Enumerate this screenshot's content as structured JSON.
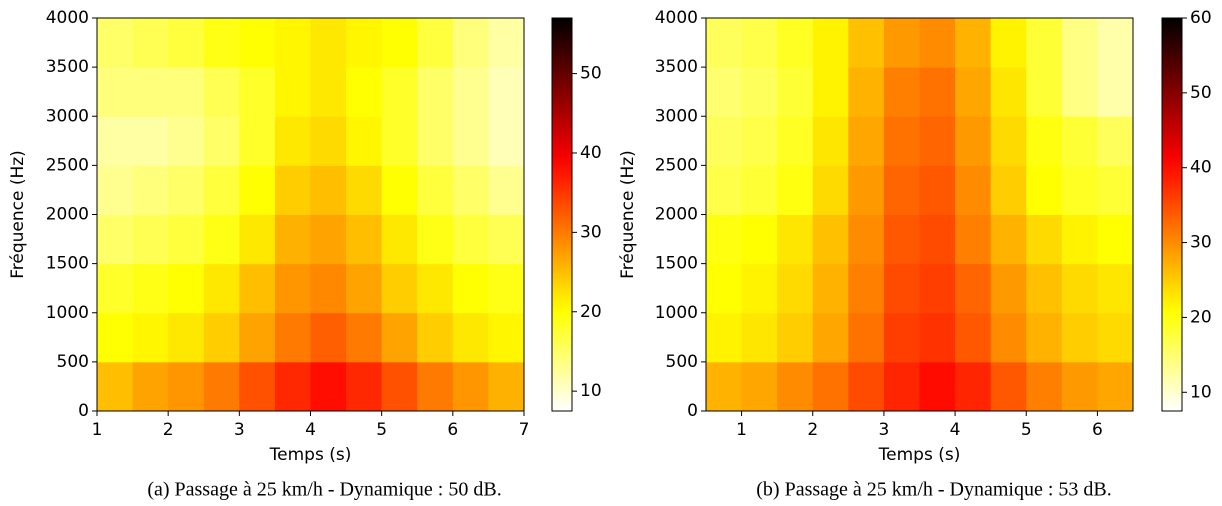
{
  "chart_data": [
    {
      "type": "heatmap",
      "caption": "(a) Passage à 25 km/h - Dynamique : 50 dB.",
      "x_label": "Temps (s)",
      "y_label": "Fréquence (Hz)",
      "x": [
        1.25,
        1.75,
        2.25,
        2.75,
        3.25,
        3.75,
        4.25,
        4.75,
        5.25,
        5.75,
        6.25,
        6.75
      ],
      "y": [
        250,
        750,
        1250,
        1750,
        2250,
        2750,
        3250,
        3750
      ],
      "values": [
        [
          25,
          27,
          28,
          30,
          33,
          36,
          38,
          36,
          33,
          30,
          28,
          26
        ],
        [
          20,
          21,
          22,
          24,
          27,
          30,
          32,
          30,
          27,
          24,
          22,
          21
        ],
        [
          18,
          19,
          20,
          22,
          25,
          28,
          29,
          27,
          24,
          22,
          20,
          19
        ],
        [
          15,
          16,
          17,
          19,
          22,
          26,
          27,
          25,
          22,
          19,
          17,
          16
        ],
        [
          13,
          14,
          15,
          17,
          20,
          24,
          25,
          23,
          20,
          17,
          15,
          13
        ],
        [
          12,
          12,
          13,
          15,
          18,
          22,
          23,
          21,
          18,
          15,
          13,
          11
        ],
        [
          14,
          14,
          14,
          16,
          18,
          21,
          22,
          20,
          18,
          15,
          13,
          11
        ],
        [
          15,
          16,
          17,
          19,
          20,
          21,
          22,
          21,
          20,
          17,
          14,
          12
        ]
      ],
      "xlim": [
        1,
        7
      ],
      "xticks": [
        1,
        2,
        3,
        4,
        5,
        6,
        7
      ],
      "ylim": [
        0,
        4000
      ],
      "yticks": [
        0,
        500,
        1000,
        1500,
        2000,
        2500,
        3000,
        3500,
        4000
      ],
      "cmap": "hot_r",
      "clim": [
        7.5,
        57
      ],
      "cticks": [
        10,
        20,
        30,
        40,
        50
      ]
    },
    {
      "type": "heatmap",
      "caption": "(b) Passage à 25 km/h - Dynamique : 53 dB.",
      "x_label": "Temps (s)",
      "y_label": "Fréquence (Hz)",
      "x": [
        0.75,
        1.25,
        1.75,
        2.25,
        2.75,
        3.25,
        3.75,
        4.25,
        4.75,
        5.25,
        5.75,
        6.25
      ],
      "y": [
        250,
        750,
        1250,
        1750,
        2250,
        2750,
        3250,
        3750
      ],
      "values": [
        [
          27,
          28,
          30,
          32,
          35,
          38,
          40,
          38,
          34,
          31,
          29,
          28
        ],
        [
          22,
          23,
          25,
          28,
          32,
          36,
          37,
          34,
          30,
          27,
          25,
          24
        ],
        [
          21,
          22,
          24,
          27,
          31,
          35,
          36,
          33,
          29,
          26,
          24,
          23
        ],
        [
          20,
          21,
          23,
          26,
          30,
          34,
          35,
          31,
          27,
          24,
          22,
          21
        ],
        [
          17,
          18,
          20,
          24,
          29,
          33,
          34,
          30,
          25,
          21,
          19,
          18
        ],
        [
          16,
          17,
          19,
          23,
          28,
          32,
          33,
          29,
          24,
          20,
          18,
          16
        ],
        [
          15,
          16,
          18,
          22,
          27,
          31,
          32,
          28,
          23,
          18,
          14,
          12
        ],
        [
          16,
          17,
          19,
          22,
          26,
          29,
          30,
          27,
          22,
          18,
          14,
          12
        ]
      ],
      "xlim": [
        0.5,
        6.5
      ],
      "xticks": [
        1,
        2,
        3,
        4,
        5,
        6
      ],
      "ylim": [
        0,
        4000
      ],
      "yticks": [
        0,
        500,
        1000,
        1500,
        2000,
        2500,
        3000,
        3500,
        4000
      ],
      "cmap": "hot_r",
      "clim": [
        7.5,
        60
      ],
      "cticks": [
        10,
        20,
        30,
        40,
        50,
        60
      ]
    }
  ]
}
